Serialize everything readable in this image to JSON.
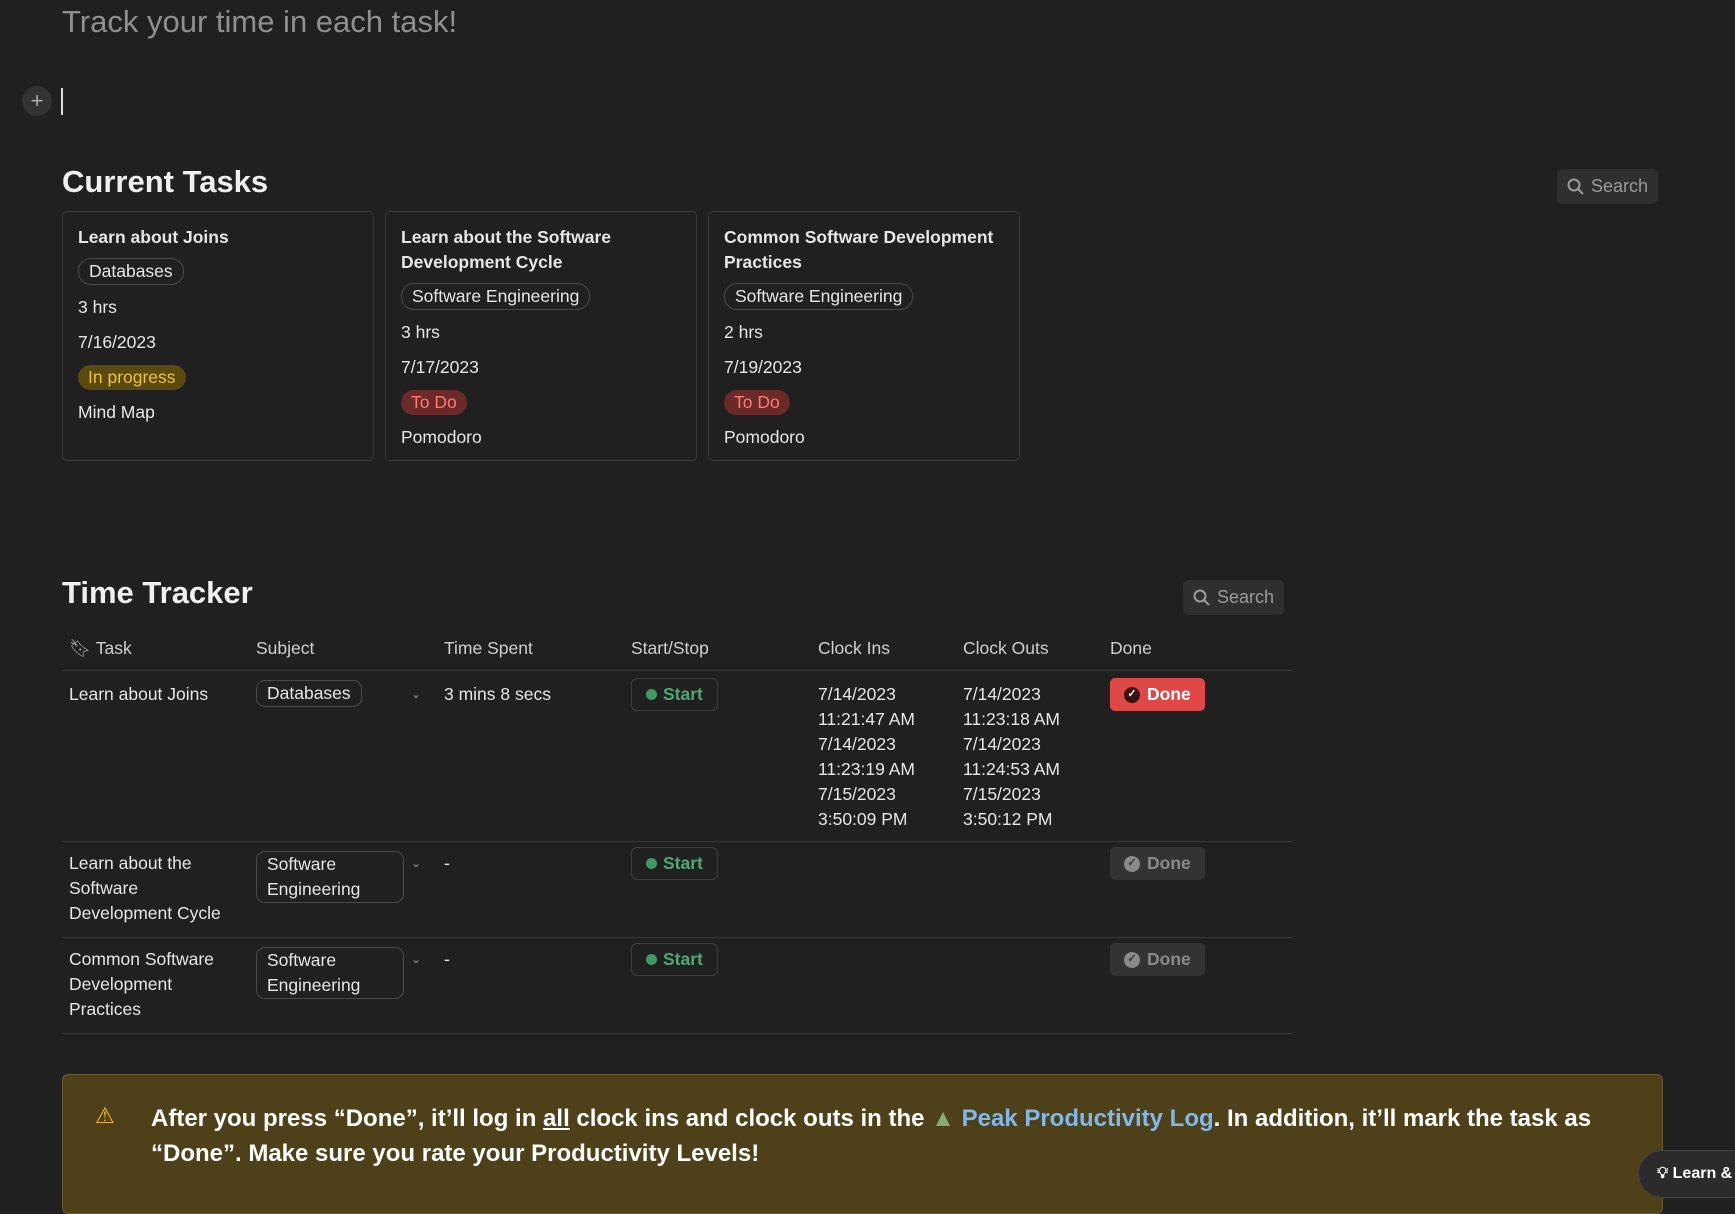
{
  "page": {
    "subtitle": "Track your time in each task!"
  },
  "current_tasks": {
    "heading": "Current Tasks",
    "search_label": "Search",
    "cards": [
      {
        "title": "Learn about Joins",
        "subject": "Databases",
        "hours": "3 hrs",
        "date": "7/16/2023",
        "status": "In progress",
        "method": "Mind Map"
      },
      {
        "title": "Learn about the Software Development Cycle",
        "subject": "Software Engineering",
        "hours": "3 hrs",
        "date": "7/17/2023",
        "status": "To Do",
        "method": "Pomodoro"
      },
      {
        "title": "Common Software Development Practices",
        "subject": "Software Engineering",
        "hours": "2 hrs",
        "date": "7/19/2023",
        "status": "To Do",
        "method": "Pomodoro"
      }
    ]
  },
  "time_tracker": {
    "heading": "Time Tracker",
    "search_label": "Search",
    "columns": [
      "Task",
      "Subject",
      "Time Spent",
      "Start/Stop",
      "Clock Ins",
      "Clock Outs",
      "Done"
    ],
    "rows": [
      {
        "task": "Learn about Joins",
        "subject": "Databases",
        "time_spent": "3 mins 8 secs",
        "start": "Start",
        "clock_ins": [
          "7/14/2023 11:21:47 AM",
          "7/14/2023 11:23:19 AM",
          "7/15/2023 3:50:09 PM"
        ],
        "clock_outs": [
          "7/14/2023 11:23:18 AM",
          "7/14/2023 11:24:53 AM",
          "7/15/2023 3:50:12 PM"
        ],
        "done": "Done",
        "done_active": true
      },
      {
        "task": "Learn about the Software Development Cycle",
        "subject": "Software Engineering",
        "time_spent": "-",
        "start": "Start",
        "done": "Done",
        "done_active": false
      },
      {
        "task": "Common Software Development Practices",
        "subject": "Software Engineering",
        "time_spent": "-",
        "start": "Start",
        "done": "Done",
        "done_active": false
      }
    ]
  },
  "callout": {
    "text_1": "After you press “Done”, it’ll log in ",
    "underlined": "all",
    "text_2": " clock ins and clock outs in the ",
    "link": "Peak Productivity Log",
    "text_3": ". In addition, it’ll mark the task as “Done”. Make sure you rate your Productivity Levels!"
  },
  "help": {
    "label": "Learn &"
  },
  "colors": {
    "done_red": "#e04848",
    "start_green": "#4fa873",
    "in_progress": "#f0c23a",
    "todo": "#ff7b73",
    "link": "#7fb8ec"
  }
}
